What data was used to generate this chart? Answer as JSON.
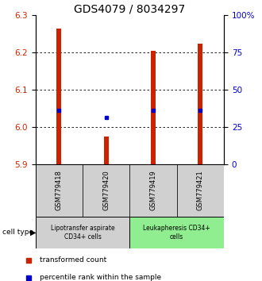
{
  "title": "GDS4079 / 8034297",
  "samples": [
    "GSM779418",
    "GSM779420",
    "GSM779419",
    "GSM779421"
  ],
  "red_values": [
    6.265,
    5.975,
    6.205,
    6.225
  ],
  "blue_values": [
    6.045,
    6.025,
    6.045,
    6.045
  ],
  "ymin": 5.9,
  "ymax": 6.3,
  "yticks": [
    5.9,
    6.0,
    6.1,
    6.2,
    6.3
  ],
  "right_yticks": [
    0,
    25,
    50,
    75,
    100
  ],
  "bar_color": "#cc2200",
  "dot_color": "#0000cc",
  "group1_label": "Lipotransfer aspirate\nCD34+ cells",
  "group2_label": "Leukapheresis CD34+\ncells",
  "sample_box_color": "#d0d0d0",
  "group1_color": "#d0d0d0",
  "group2_color": "#90ee90",
  "cell_type_label": "cell type",
  "legend_red": "transformed count",
  "legend_blue": "percentile rank within the sample",
  "title_fontsize": 10,
  "tick_fontsize": 7.5
}
